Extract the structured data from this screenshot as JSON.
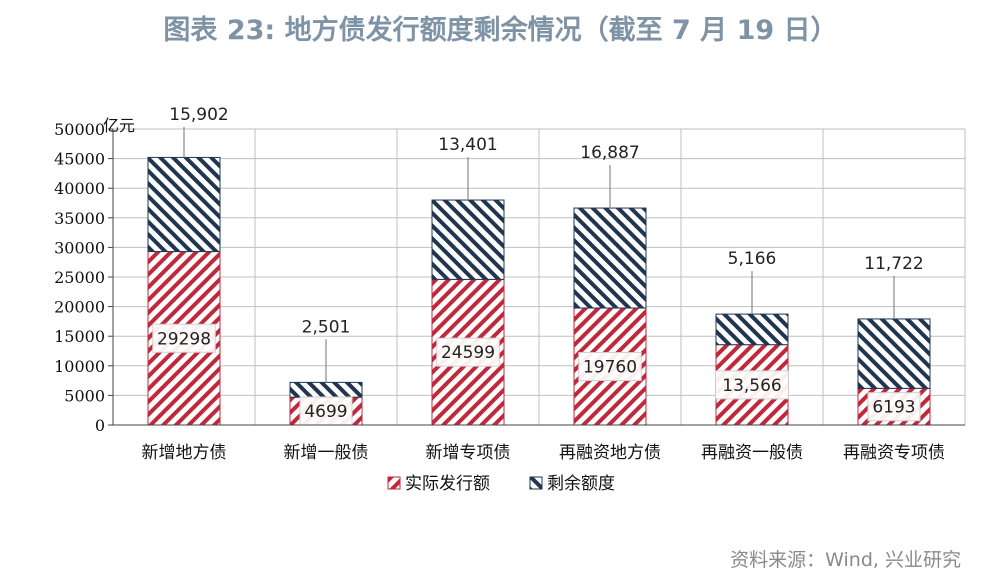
{
  "title": "图表 23: 地方债发行额度剩余情况（截至 7 月 19 日）",
  "source": "资料来源：Wind, 兴业研究",
  "colors": {
    "issued": "#c0283c",
    "remaining": "#1f3550",
    "grid": "#bfbfbf"
  },
  "chart_data": {
    "type": "bar",
    "stacked": true,
    "unit_label": "亿元",
    "categories": [
      "新增地方债",
      "新增一般债",
      "新增专项债",
      "再融资地方债",
      "再融资一般债",
      "再融资专项债"
    ],
    "series": [
      {
        "name": "实际发行额",
        "values": [
          29298,
          4699,
          24599,
          19760,
          13566,
          6193
        ],
        "labels": [
          "29298",
          "4699",
          "24599",
          "19760",
          "13,566",
          "6193"
        ]
      },
      {
        "name": "剩余额度",
        "values": [
          15902,
          2501,
          13401,
          16887,
          5166,
          11722
        ],
        "labels": [
          "15,902",
          "2,501",
          "13,401",
          "16,887",
          "5,166",
          "11,722"
        ]
      }
    ],
    "ylim": [
      0,
      50000
    ],
    "yticks": [
      0,
      5000,
      10000,
      15000,
      20000,
      25000,
      30000,
      35000,
      40000,
      45000,
      50000
    ],
    "grid": true,
    "legend": "bottom"
  }
}
